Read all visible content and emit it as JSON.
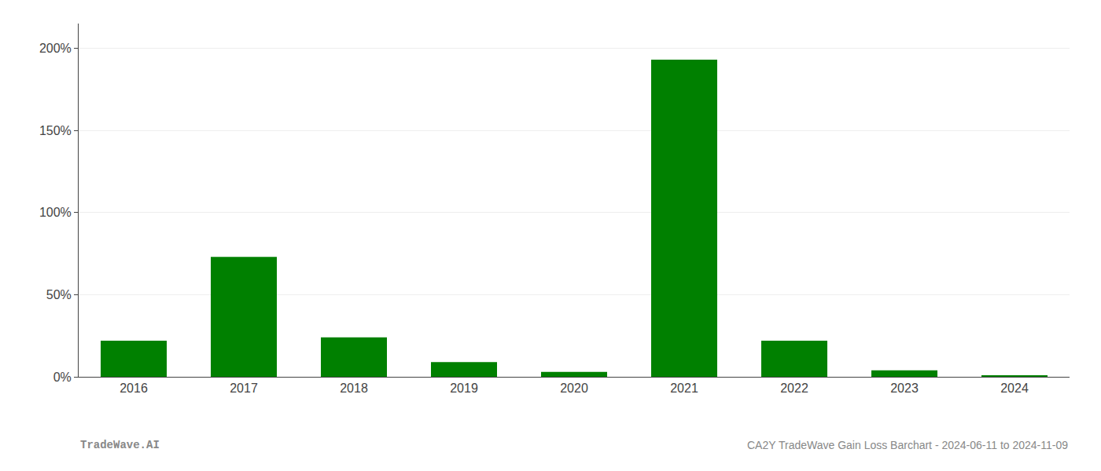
{
  "chart_data": {
    "type": "bar",
    "categories": [
      "2016",
      "2017",
      "2018",
      "2019",
      "2020",
      "2021",
      "2022",
      "2023",
      "2024"
    ],
    "values": [
      0.22,
      0.73,
      0.24,
      0.09,
      0.03,
      1.93,
      0.22,
      0.04,
      0.005
    ],
    "color": "#008000",
    "ylim": [
      0,
      2.15
    ],
    "yticks": [
      {
        "value": 0.0,
        "label": "0%"
      },
      {
        "value": 0.5,
        "label": "50%"
      },
      {
        "value": 1.0,
        "label": "100%"
      },
      {
        "value": 1.5,
        "label": "150%"
      },
      {
        "value": 2.0,
        "label": "200%"
      }
    ],
    "grid": true,
    "annotations": [
      "TradeWave.AI",
      "CA2Y TradeWave Gain Loss Barchart - 2024-06-11 to 2024-11-09"
    ]
  }
}
